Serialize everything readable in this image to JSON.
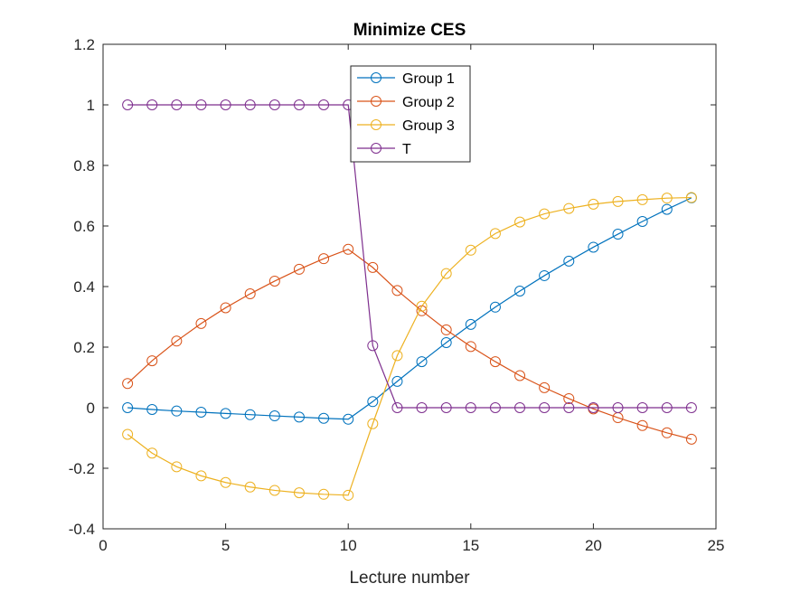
{
  "chart_data": {
    "type": "line",
    "title": "Minimize CES",
    "xlabel": "Lecture number",
    "ylabel": "",
    "xlim": [
      0,
      25
    ],
    "ylim": [
      -0.4,
      1.2
    ],
    "xticks": [
      0,
      5,
      10,
      15,
      20,
      25
    ],
    "yticks": [
      -0.4,
      -0.2,
      0,
      0.2,
      0.4,
      0.6,
      0.8,
      1,
      1.2
    ],
    "xtick_labels": [
      "0",
      "5",
      "10",
      "15",
      "20",
      "25"
    ],
    "ytick_labels": [
      "-0.4",
      "-0.2",
      "0",
      "0.2",
      "0.4",
      "0.6",
      "0.8",
      "1",
      "1.2"
    ],
    "grid": false,
    "legend_position": "top-center",
    "marker": "circle",
    "x": [
      1,
      2,
      3,
      4,
      5,
      6,
      7,
      8,
      9,
      10,
      11,
      12,
      13,
      14,
      15,
      16,
      17,
      18,
      19,
      20,
      21,
      22,
      23,
      24
    ],
    "series": [
      {
        "name": "Group 1",
        "color": "#0072BD",
        "values": [
          0.0,
          -0.006,
          -0.011,
          -0.015,
          -0.019,
          -0.023,
          -0.027,
          -0.031,
          -0.035,
          -0.038,
          0.02,
          0.087,
          0.152,
          0.215,
          0.275,
          0.332,
          0.385,
          0.436,
          0.484,
          0.53,
          0.573,
          0.615,
          0.655,
          0.693
        ]
      },
      {
        "name": "Group 2",
        "color": "#D95319",
        "values": [
          0.08,
          0.155,
          0.22,
          0.278,
          0.33,
          0.376,
          0.418,
          0.457,
          0.492,
          0.523,
          0.463,
          0.387,
          0.32,
          0.257,
          0.202,
          0.152,
          0.106,
          0.066,
          0.03,
          -0.004,
          -0.033,
          -0.059,
          -0.083,
          -0.104
        ]
      },
      {
        "name": "Group 3",
        "color": "#EDB120",
        "values": [
          -0.088,
          -0.15,
          -0.195,
          -0.225,
          -0.247,
          -0.262,
          -0.273,
          -0.281,
          -0.286,
          -0.289,
          -0.053,
          0.172,
          0.335,
          0.443,
          0.52,
          0.575,
          0.613,
          0.64,
          0.658,
          0.672,
          0.681,
          0.687,
          0.692,
          0.694
        ]
      },
      {
        "name": "T",
        "color": "#7E2F8E",
        "values": [
          1,
          1,
          1,
          1,
          1,
          1,
          1,
          1,
          1,
          1,
          0.205,
          0,
          0,
          0,
          0,
          0,
          0,
          0,
          0,
          0,
          0,
          0,
          0,
          0
        ]
      }
    ]
  }
}
